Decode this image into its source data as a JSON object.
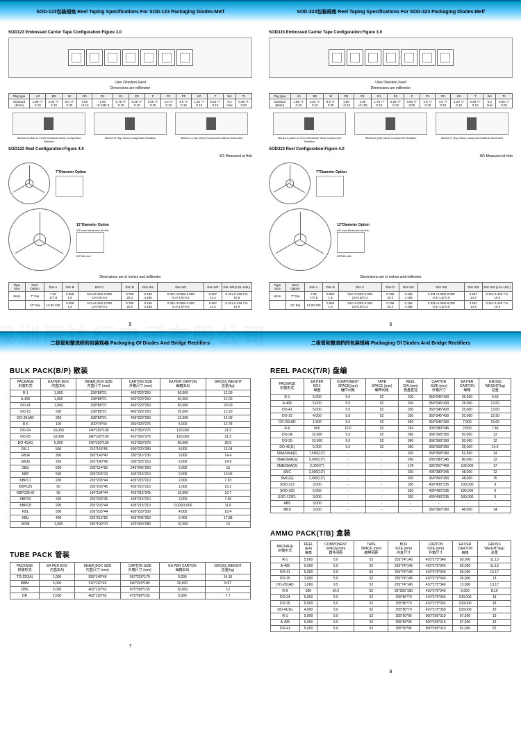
{
  "watermark": "深圳辰达行电子有限公司",
  "page5": {
    "header": "SOD-123包装规格 Reel Taping Specifications For SOD-123 Packaging Diodes-Melf",
    "tape_title": "SOD123 Embossed Carrier Tape Configuration:Figure 3.0",
    "feed": "User Direction Feed",
    "dim_caption": "Dimensions are millimeter",
    "dim_headers": [
      "Pkg type",
      "A0",
      "B0",
      "W",
      "D0",
      "D1",
      "E1",
      "E2",
      "F",
      "P1",
      "P0",
      "K0",
      "T",
      "Wc",
      "Tc"
    ],
    "dim_row_label": "SOD123 (8mm)",
    "dim_row": [
      "1.85 +/- 0.10",
      "3.04 +/- 0.10",
      "8.0 +/- 0.30",
      "1.50 +0.10",
      "1.00 +0.125/-0",
      "1.75 +/- 0.10",
      "6.25 +/- 0.10",
      "3.50 +/- 0.05",
      "4.0 +/- 0.10",
      "4.0 +/- 0.10",
      "1.20 +/- 0.10",
      "0.25 +/- 0.10",
      "9.2 max",
      "0.06 +/- 0.02"
    ],
    "rot_a": "Sketch A (Side or Front Sectional View) Component Rotation",
    "rot_b": "Sketch B (Top View) Component Rotation",
    "rot_c": "Sketch C (Top View) Component lateral movement",
    "reel_title": "SOD123 Reel Configuration:Figure 4.0",
    "w1_label": "W1 Measured at Hub",
    "opt7": "7\"Diameter Option",
    "opt13": "13\"Diameter Option",
    "w2_label": "W2 max Measured at Hub",
    "detail": "DETAIL-AA",
    "reel_dim_caption": "Dimensions are in inches and millimeter",
    "reel_headers": [
      "Tape Size",
      "Reel Option",
      "Dim A",
      "Dim B",
      "Dim C",
      "Dim D",
      "Dim W1",
      "Dim W2",
      "Dim W3",
      "Dim W3 (LSL-USL)"
    ],
    "reel_rows": [
      [
        "8mm",
        "7\" Dia",
        "7.00 177.8",
        "0.059 1.5",
        "512+0.020/-0.008 13+0.5/-0.2",
        "0.795 20.2",
        "0.165 4.185",
        "0.331+0.059/-0.000 8.4+1.5/-0.0",
        "0.567 14.4",
        "0.311-0.429 7.9-10.9"
      ],
      [
        "",
        "13\" Dia",
        "13.00 330",
        "0.059 1.5",
        "512+0.020/-0.008 13+0.5/-0.2",
        "0.795 20.2",
        "0.165 4.185",
        "0.331+0.059/-0.000 8.4+1.5/-0.0",
        "0.567 14.4",
        "0.311-0.429 7.9-10.9"
      ]
    ],
    "num": "5"
  },
  "page6": {
    "header": "SOD-323包装规格 Reel Taping Specifications For SOD-323 Packaging Diodes-Melf",
    "tape_title": "SOD323 Embossed Carrier Tape Configuration:Figure 3.0",
    "feed": "User Direction Feed",
    "dim_caption": "Dimensions are millimeter",
    "dim_headers": [
      "Pkg type",
      "A0",
      "B0",
      "W",
      "D0",
      "D1",
      "E1",
      "E2",
      "F",
      "P1",
      "P0",
      "K0",
      "T",
      "Wc",
      "Tc"
    ],
    "dim_row_label": "SOD323 (8mm)",
    "dim_row": [
      "1.85 +/- 0.10",
      "3.04 +/- 0.10",
      "8.0 +/- 0.30",
      "1.50 +0.10",
      "1.00 +0.125",
      "1.75 +/- 0.10",
      "6.25 +/- 0.10",
      "3.50 +/- 0.05",
      "4.0 +/- 0.10",
      "4.0 +/- 0.10",
      "1.20 +/- 0.10",
      "0.25 +/- 0.10",
      "9.2 max",
      "0.06 +/- 0.02"
    ],
    "rot_a": "Sketch A (Side or Front Sectional View) Component Rotation",
    "rot_b": "Sketch B (Top View) Component Rotation",
    "rot_c": "Sketch C (Top View) Component lateral movement",
    "reel_title": "SOD323 Reel Configuration:Figure 4.0",
    "w1_label": "W1 Measured at Hub",
    "opt7": "7\"Diameter Option",
    "opt13": "13\"Diameter Option",
    "w2_label": "W2 max Measured at Hub",
    "detail": "DETAIL-AA",
    "reel_dim_caption": "Dimensions are in inches and millimeter",
    "reel_headers": [
      "Tape Size",
      "Reel Option",
      "Dim A",
      "Dim B",
      "Dim C",
      "Dim D",
      "Dim W1",
      "Dim W2",
      "Dim W3",
      "Dim W3 (LSL-USL)"
    ],
    "reel_rows": [
      [
        "8mm",
        "7\" Dia",
        "7.00 177.8",
        "0.059 1.5",
        "512+0.020/-0.008 13+0.5/-0.2",
        "0.795 20.2",
        "0.165 4.185",
        "0.331+0.059/-0.000 8.4+1.5/-0.0",
        "0.567 14.4",
        "0.311-0.429 7.9-10.9"
      ],
      [
        "",
        "13\" Dia",
        "13.00 330",
        "0.059 1.5",
        "512+0.020/-0.008 13+0.5/-0.2",
        "0.795 20.2",
        "0.165 4.185",
        "0.331+0.059/-0.000 8.4+1.5/-0.0",
        "0.567 14.4",
        "0.311-0.429 7.9-10.9"
      ]
    ],
    "num": "6"
  },
  "page7": {
    "header": "二极管和整流桥的包装规格  Packaging Of Diodes And Bridge Rectifiers",
    "bulk_title": "BULK PACK(B/P) 散装",
    "bulk_headers": [
      "PACKAGE\n封装形式",
      "EA PER BOX\n内盒(EA)",
      "INNER BOX SIZE\n内盒尺寸 (mm)",
      "CARTON SIZE\n外箱尺寸 (mm)",
      "EA PER CARTON\n每箱(EA)",
      "GROSS WEIGHT\n总重(kg)"
    ],
    "bulk_rows": [
      [
        "R-1",
        "1,000",
        "198*88*21",
        "460*220*250",
        "50,000",
        "12.00"
      ],
      [
        "A-405",
        "1,000",
        "198*88*21",
        "460*220*250",
        "50,000",
        "12.00"
      ],
      [
        "DO-41",
        "1,000",
        "198*88*21",
        "460*220*250",
        "50,000",
        "20.00"
      ],
      [
        "DO-15",
        "500",
        "198*88*21",
        "460*220*250",
        "25,000",
        "13.20"
      ],
      [
        "DO-201AD",
        "250",
        "198*88*21",
        "460*220*250",
        "12,500",
        "14.00"
      ],
      [
        "R-6",
        "100",
        "300*75*40",
        "350*320*275",
        "5,000",
        "12.78"
      ],
      [
        "DO-34",
        "10,000",
        "240*100*100",
        "410*350*275",
        "120,000",
        "21.5"
      ],
      [
        "DO-35",
        "10,000",
        "240*100*100",
        "410*350*275",
        "120,000",
        "21.5"
      ],
      [
        "DO-41(G)",
        "5,000",
        "240*100*100",
        "410*350*275",
        "60,000",
        "25.5"
      ],
      [
        "RS-2",
        "500",
        "212*165*55",
        "490*220*280",
        "4,000",
        "13.04"
      ],
      [
        "GBJ4",
        "300",
        "320*140*40",
        "330*315*235",
        "3,000",
        "14.4"
      ],
      [
        "GBJ6",
        "250",
        "310*140*45",
        "330*325*210",
        "2,000",
        "14.9"
      ],
      [
        "GBU",
        "500",
        "232*114*83",
        "245*245*250",
        "2,000",
        "16"
      ],
      [
        "KBP",
        "500",
        "203*203*13",
        "435*215*210",
        "2,000",
        "10.65"
      ],
      [
        "KBPC1",
        "200",
        "203*203*44",
        "435*215*210",
        "2,000",
        "7.93"
      ],
      [
        "KBPC25",
        "50",
        "203*203*45",
        "435*215*210",
        "1,000",
        "15.2"
      ],
      [
        "KBPC25-W",
        "50",
        "194*194*44",
        "425*215*245",
        "10,000",
        "13.7"
      ],
      [
        "KBPC6",
        "200",
        "203*203*35",
        "435*215*210",
        "2,000",
        "7.56"
      ],
      [
        "KBPC8",
        "200",
        "203*203*44",
        "435*215*210",
        "2,000/3,000",
        "11.6"
      ],
      [
        "KBL",
        "500",
        "203*203*44",
        "430*220*200",
        "4,000",
        "18.4"
      ],
      [
        "KBU",
        "400",
        "233*213*55",
        "455*245*250",
        "2,400",
        "17.88"
      ],
      [
        "WOB",
        "1,000",
        "260*190*70",
        "420*400*280",
        "10,000",
        "13"
      ]
    ],
    "tube_title": "TUBE PACK 管装",
    "tube_headers": [
      "PACKAGE\n封装形式",
      "EA PER BOX\n内盒(EA)",
      "INNER BOX SIZE\n内盒尺寸 (mm)",
      "CARTON SIZE\n外箱尺寸 (mm)",
      "EA PER CARTON\n每箱(EA)",
      "GROSS WEIGHT\n总重(kg)"
    ],
    "tube_rows": [
      [
        "TO-220(A)",
        "1,000",
        "555*145*40",
        "567*230*170",
        "5,000",
        "14.15"
      ],
      [
        "MBM",
        "5,000",
        "510*110*49",
        "540*240*185",
        "30,000",
        "8.97"
      ],
      [
        "DBS",
        "5,000",
        "462*130*62",
        "475*280*155",
        "10,000",
        "13"
      ],
      [
        "DB",
        "2,500",
        "462*130*62",
        "475*280*155",
        "5,000",
        "7.7"
      ]
    ],
    "num": "7"
  },
  "page8": {
    "header": "二极管和整流桥的包装规格  Packaging Of Diodes And Bridge Rectifiers",
    "reel_title": "REEL PACK(T/R) 盘编",
    "reel_headers": [
      "PACKAGE\n封装形式",
      "EA PER\nBOX\n每盘",
      "COMPONENT\nSPACE(mm)\n器件间距",
      "TAPE\nSPACE (mm)\n编带间距",
      "REEL\nDIA.(mm)\n卷盘直径",
      "CARTON\nSIZE (mm)\n外箱尺寸",
      "EA PER\nCARTON\n每箱",
      "GROSS\nWEIGHT(kg)\n总重"
    ],
    "reel_rows": [
      [
        "R-1",
        "5,000",
        "5.0",
        "52",
        "330",
        "350*345*430",
        "25,000",
        "9.50"
      ],
      [
        "A-405",
        "5,000",
        "5.0",
        "52",
        "330",
        "350*345*430",
        "25,000",
        "12.00"
      ],
      [
        "DO-41",
        "5,000",
        "5.0",
        "52",
        "330",
        "350*345*430",
        "25,000",
        "13.00"
      ],
      [
        "DO-15",
        "4,000",
        "5.0",
        "52",
        "330",
        "350*345*430",
        "20,000",
        "12.50"
      ],
      [
        "DO-201AD",
        "1,500",
        "9.5",
        "52",
        "330",
        "350*345*430",
        "7,500",
        "13.00"
      ],
      [
        "R-6",
        "500",
        "10.0",
        "52",
        "264",
        "300*280*345",
        "2,500",
        "7.45"
      ],
      [
        "DO-34",
        "10,000",
        "5.0",
        "52",
        "360",
        "368*368*390",
        "50,000",
        "13"
      ],
      [
        "DO-35",
        "10,000",
        "5.0",
        "52",
        "360",
        "368*368*390",
        "50,000",
        "12"
      ],
      [
        "DO-41(G)",
        "5,000",
        "5.0",
        "52",
        "360",
        "368*368*390",
        "25,000",
        "14.5"
      ],
      [
        "SMA/SMA(F)",
        "7,500(13\")",
        "-",
        "-",
        "330",
        "368*368*390",
        "52,500",
        "14"
      ],
      [
        "SMA/SMA(G)",
        "5,000(13\")",
        "-",
        "-",
        "260",
        "280*280*345",
        "80,000",
        "12"
      ],
      [
        "SMB/SMA(G)",
        "2,000(7\")",
        "-",
        "-",
        "178",
        "390*257*400",
        "100,000",
        "17"
      ],
      [
        "SMC",
        "3,000(13\")",
        "-",
        "-",
        "330",
        "435*380*345",
        "48,000",
        "12"
      ],
      [
        "SMC(G)",
        "2,000(13\")",
        "-",
        "-",
        "330",
        "360*360*390",
        "48,000",
        "15"
      ],
      [
        "SOD-123",
        "3,000",
        "-",
        "-",
        "330",
        "430*430*235",
        "180,000",
        "9"
      ],
      [
        "SOD-323",
        "5,000",
        "-",
        "-",
        "330",
        "430*430*235",
        "180,000",
        "9"
      ],
      [
        "SOD-123FL",
        "3,000",
        "-",
        "-",
        "330",
        "430*430*235",
        "180,000",
        "9"
      ],
      [
        "ABS",
        "3,000",
        "-",
        "-",
        "-",
        "-",
        "-",
        "-"
      ],
      [
        "MBS",
        "3,000",
        "-",
        "-",
        "-",
        "360*360*390",
        "48,000",
        "14"
      ]
    ],
    "ammo_title": "AMMO PACK(T/B) 盒装",
    "ammo_headers": [
      "PACKAGE\n封装形式",
      "REEL\n(EA)\n每盘",
      "COMPONENT\nSPACE(mm)\n器件间距",
      "TAPE\nSPACE (mm)\n编带间距",
      "BOX\nSIZE (mm)\n内盒尺寸",
      "CARTON\nSIZE (mm)\n外箱尺寸",
      "EA PER\nCARTON\n每箱",
      "GROSS\nWEIGHT(kg)\n总重"
    ],
    "ammo_rows": [
      [
        "R-1",
        "5,000",
        "5.0",
        "52",
        "255*74*145",
        "410*275*340",
        "50,000",
        "11.13"
      ],
      [
        "A-405",
        "5,000",
        "5.0",
        "52",
        "255*74*145",
        "410*275*340",
        "50,000",
        "11.13"
      ],
      [
        "DO-41",
        "5,000",
        "5.0",
        "52",
        "255*74*145",
        "410*275*340",
        "50,000",
        "15.17"
      ],
      [
        "DO-15",
        "3,000",
        "5.0",
        "52",
        "255*74*145",
        "410*275*340",
        "30,000",
        "13"
      ],
      [
        "DO-201AD",
        "1,000",
        "9.5",
        "52",
        "255*74*145",
        "410*275*340",
        "13,000",
        "13.17"
      ],
      [
        "R-6",
        "500",
        "10.0",
        "52",
        "82*255*160",
        "410*275*340",
        "5,000",
        "8.10"
      ],
      [
        "DO-34",
        "5,000",
        "5.0",
        "52",
        "255*80*70",
        "410*275*350",
        "100,000",
        "18"
      ],
      [
        "DO-35",
        "5,000",
        "5.0",
        "52",
        "255*80*70",
        "410*275*350",
        "100,000",
        "18"
      ],
      [
        "DO-41(G)",
        "4,000",
        "5.0",
        "52",
        "255*80*70",
        "410*275*350",
        "100,000",
        "20"
      ],
      [
        "R-1",
        "5,000",
        "5.0",
        "52",
        "255*50*95",
        "500*265*310",
        "67,500",
        "13"
      ],
      [
        "A-405",
        "5,000",
        "5.0",
        "52",
        "255*50*95",
        "500*265*310",
        "67,500",
        "13"
      ],
      [
        "DO-41",
        "5,000",
        "5.0",
        "52",
        "255*50*95",
        "500*265*310",
        "81,000",
        "22"
      ]
    ],
    "num": "8"
  },
  "colors": {
    "grad_top": "#0099cc",
    "grad_mid": "#66ccff",
    "border": "#666666"
  }
}
